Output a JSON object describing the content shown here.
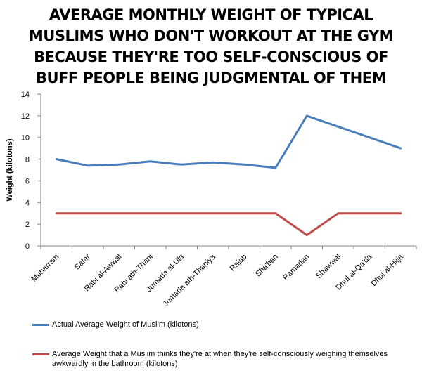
{
  "chart_data": {
    "type": "line",
    "title_lines": [
      "AVERAGE MONTHLY WEIGHT OF TYPICAL",
      "MUSLIMS WHO DON'T WORKOUT AT THE GYM",
      "BECAUSE THEY'RE TOO SELF-CONSCIOUS OF",
      "BUFF PEOPLE BEING JUDGMENTAL OF THEM"
    ],
    "ylabel": "Weight (kilotons)",
    "xlabel": "",
    "ylim": [
      0,
      14
    ],
    "yticks": [
      0,
      2,
      4,
      6,
      8,
      10,
      12,
      14
    ],
    "grid": false,
    "legend_position": "bottom",
    "categories": [
      "Muharram",
      "Safar",
      "Rabi al-Awwal",
      "Rabi ath-Thani",
      "Jumada al-Ula",
      "Jumada ath-Thaniya",
      "Rajab",
      "Sha'ban",
      "Ramadan",
      "Shawwal",
      "Dhul al-Qa'da",
      "Dhul al-Hijja"
    ],
    "series": [
      {
        "name": "Actual Average Weight of Muslim (kilotons)",
        "color": "#4a7ebb",
        "values": [
          8.0,
          7.4,
          7.5,
          7.8,
          7.5,
          7.7,
          7.5,
          7.2,
          12.0,
          11.0,
          10.0,
          9.0
        ]
      },
      {
        "name": "Average Weight that a Muslim thinks they're at when they're self-consciously weighing themselves awkwardly in the bathroom (kilotons)",
        "color": "#be4b48",
        "values": [
          3,
          3,
          3,
          3,
          3,
          3,
          3,
          3,
          1,
          3,
          3,
          3
        ]
      }
    ]
  }
}
